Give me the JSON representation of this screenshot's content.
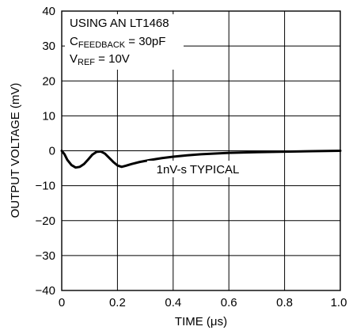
{
  "chart_data": {
    "type": "line",
    "xlabel_text": "TIME (",
    "xlabel_unit": "μs",
    "xlabel_close": ")",
    "ylabel": "OUTPUT VOLTAGE (mV)",
    "xlim": [
      0,
      1.0
    ],
    "ylim": [
      -40,
      40
    ],
    "x_ticks": [
      "0",
      "0.2",
      "0.4",
      "0.6",
      "0.8",
      "1.0"
    ],
    "y_ticks": [
      "40",
      "30",
      "20",
      "10",
      "0",
      "−10",
      "−20",
      "−30",
      "−40"
    ],
    "grid": true,
    "annotations": {
      "line1": "USING AN LT1468",
      "line2_main": "C",
      "line2_sub": "FEEDBACK",
      "line2_rest": " = 30pF",
      "line3_main": "V",
      "line3_sub": "REF",
      "line3_rest": " = 10V",
      "curve_label": "1nV-s TYPICAL"
    },
    "series": [
      {
        "x": [
          0,
          0.01,
          0.02,
          0.035,
          0.05,
          0.065,
          0.08,
          0.095,
          0.11,
          0.125,
          0.14,
          0.155,
          0.17,
          0.185,
          0.2,
          0.215,
          0.23,
          0.25,
          0.28,
          0.32,
          0.36,
          0.4,
          0.45,
          0.5,
          0.55,
          0.6,
          0.7,
          0.8,
          0.9,
          1.0
        ],
        "y": [
          0,
          -1.0,
          -2.6,
          -4.1,
          -4.8,
          -4.6,
          -3.8,
          -2.5,
          -1.1,
          -0.3,
          -0.2,
          -0.8,
          -2.0,
          -3.2,
          -4.2,
          -4.6,
          -4.3,
          -3.8,
          -3.2,
          -2.6,
          -2.1,
          -1.7,
          -1.3,
          -1.0,
          -0.8,
          -0.6,
          -0.4,
          -0.25,
          -0.12,
          0
        ]
      }
    ]
  }
}
